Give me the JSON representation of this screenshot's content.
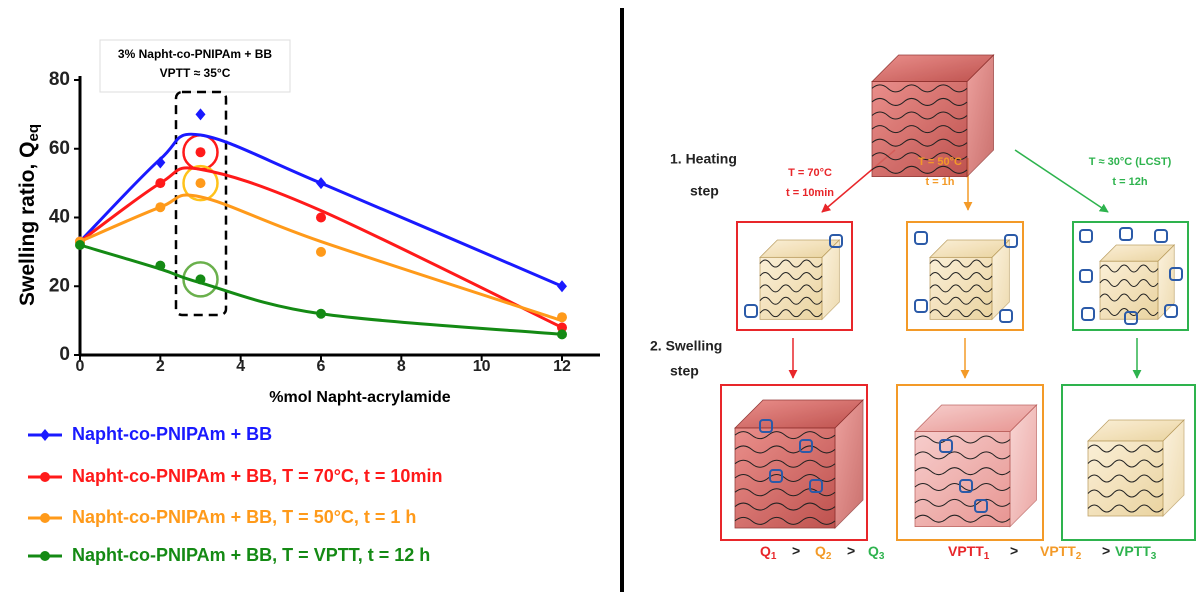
{
  "chart_data": {
    "type": "scatter",
    "annotations": [
      "3% Napht-co-PNIPAm + BB",
      "VPTT ≈ 35°C"
    ],
    "y_label": "Swelling ratio, Q",
    "y_label_sub": "eq",
    "x_label": "%mol Napht-acrylamide",
    "x": [
      0,
      2,
      3,
      6,
      12
    ],
    "xlim": [
      0,
      12
    ],
    "xticks": [
      0,
      2,
      4,
      6,
      8,
      10,
      12
    ],
    "ylim": [
      0,
      80
    ],
    "yticks": [
      0,
      20,
      40,
      60,
      80
    ],
    "series": [
      {
        "name": "Napht-co-PNIPAm + BB",
        "color": "#1a1aff",
        "marker": "diamond",
        "values": [
          33,
          56,
          70,
          50,
          20
        ],
        "fit_values": [
          33,
          57,
          64,
          50,
          20
        ]
      },
      {
        "name": "Napht-co-PNIPAm + BB, T = 70°C, t = 10min",
        "color": "#ff1a1a",
        "marker": "circle",
        "values": [
          33,
          50,
          59,
          40,
          8
        ],
        "fit_values": [
          33,
          50,
          54,
          42,
          8
        ]
      },
      {
        "name": "Napht-co-PNIPAm + BB, T = 50°C, t = 1 h",
        "color": "#ff9a1a",
        "marker": "circle",
        "values": [
          33,
          43,
          50,
          30,
          11
        ],
        "fit_values": [
          33,
          43,
          46,
          33,
          10
        ]
      },
      {
        "name": "Napht-co-PNIPAm + BB, T = VPTT, t = 12 h",
        "color": "#148a14",
        "marker": "circle",
        "values": [
          32,
          26,
          22,
          12,
          6
        ],
        "fit_values": [
          32,
          25,
          21,
          12,
          6
        ]
      }
    ],
    "highlight_colors": [
      "#ff1a1a",
      "#ffc21a",
      "#6ab04c"
    ]
  },
  "diagram": {
    "steps": [
      [
        "1. Heating",
        "step"
      ],
      [
        "2. Swelling",
        "step"
      ]
    ],
    "conditions": [
      {
        "T": "T = 70°C",
        "t": "t = 10min",
        "color": "#e8262a"
      },
      {
        "T": "T = 50°C",
        "t": "t = 1h",
        "color": "#f39a28"
      },
      {
        "T": "T ≈ 30°C (LCST)",
        "t": "t = 12h",
        "color": "#2eb34e"
      }
    ],
    "comparisons": [
      {
        "operator": ">",
        "terms": [
          {
            "base": "Q",
            "sub": "1"
          },
          {
            "base": "Q",
            "sub": "2"
          },
          {
            "base": "Q",
            "sub": "3"
          }
        ]
      },
      {
        "operator": ">",
        "terms": [
          {
            "base": "VPTT",
            "sub": "1"
          },
          {
            "base": "VPTT",
            "sub": "2"
          },
          {
            "base": "VPTT",
            "sub": "3"
          }
        ]
      }
    ]
  }
}
